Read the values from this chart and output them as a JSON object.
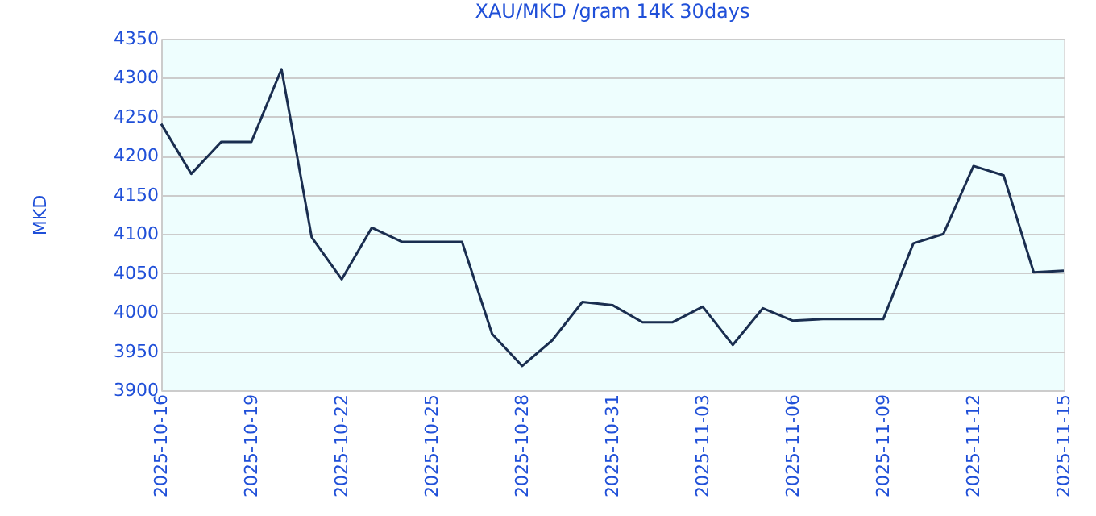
{
  "chart_data": {
    "type": "line",
    "title": "XAU/MKD /gram 14K 30days",
    "ylabel": "MKD",
    "x": [
      "2025-10-16",
      "2025-10-17",
      "2025-10-18",
      "2025-10-19",
      "2025-10-20",
      "2025-10-21",
      "2025-10-22",
      "2025-10-23",
      "2025-10-24",
      "2025-10-25",
      "2025-10-26",
      "2025-10-27",
      "2025-10-28",
      "2025-10-29",
      "2025-10-30",
      "2025-10-31",
      "2025-11-01",
      "2025-11-02",
      "2025-11-03",
      "2025-11-04",
      "2025-11-05",
      "2025-11-06",
      "2025-11-07",
      "2025-11-08",
      "2025-11-09",
      "2025-11-10",
      "2025-11-11",
      "2025-11-12",
      "2025-11-13",
      "2025-11-14",
      "2025-11-15"
    ],
    "series": [
      {
        "color": "#1a2e50",
        "values": [
          4241,
          4177,
          4218,
          4218,
          4311,
          4096,
          4042,
          4108,
          4090,
          4090,
          4090,
          3972,
          3931,
          3964,
          4013,
          4009,
          3987,
          3987,
          4007,
          3958,
          4005,
          3989,
          3991,
          3991,
          3991,
          4088,
          4100,
          4187,
          4175,
          4051,
          4053
        ]
      }
    ],
    "xlim": [
      "2025-10-16",
      "2025-11-15"
    ],
    "xticks": [
      "2025-10-16",
      "2025-10-19",
      "2025-10-22",
      "2025-10-25",
      "2025-10-28",
      "2025-10-31",
      "2025-11-03",
      "2025-11-06",
      "2025-11-09",
      "2025-11-12",
      "2025-11-15"
    ],
    "ylim": [
      3900,
      4350
    ],
    "yticks": [
      3900,
      3950,
      4000,
      4050,
      4100,
      4150,
      4200,
      4250,
      4300,
      4350
    ],
    "grid": "y",
    "legend": false,
    "marker": "none",
    "line_style": "solid"
  }
}
